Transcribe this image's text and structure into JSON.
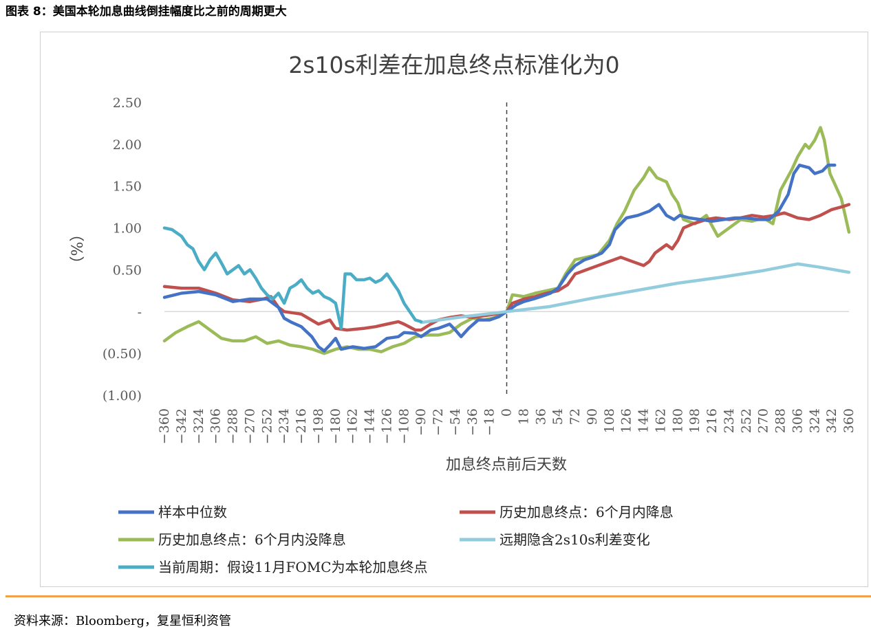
{
  "figure_caption": "图表 8：美国本轮加息曲线倒挂幅度比之前的周期更大",
  "source": "资料来源：Bloomberg，复星恒利资管",
  "chart_data": {
    "type": "line",
    "title": "2s10s利差在加息终点标准化为0",
    "xlabel": "加息终点前后天数",
    "ylabel": "（%）",
    "xlim": [
      -360,
      360
    ],
    "ylim": [
      -1.0,
      2.5
    ],
    "x_ticks": [
      -360,
      -342,
      -324,
      -306,
      -288,
      -270,
      -252,
      -234,
      -216,
      -198,
      -180,
      -162,
      -144,
      -126,
      -108,
      -90,
      -72,
      -54,
      -36,
      -18,
      0,
      18,
      36,
      54,
      72,
      90,
      108,
      126,
      144,
      162,
      180,
      198,
      216,
      234,
      252,
      270,
      288,
      306,
      324,
      342,
      360
    ],
    "y_ticks": [
      {
        "value": 2.5,
        "label": "2.50"
      },
      {
        "value": 2.0,
        "label": "2.00"
      },
      {
        "value": 1.5,
        "label": "1.50"
      },
      {
        "value": 1.0,
        "label": "1.00"
      },
      {
        "value": 0.5,
        "label": "0.50"
      },
      {
        "value": 0.0,
        "label": "-"
      },
      {
        "value": -0.5,
        "label": "(0.50)"
      },
      {
        "value": -1.0,
        "label": "(1.00)"
      }
    ],
    "reference_line_x": 0,
    "series": [
      {
        "name": "样本中位数",
        "color": "#4472c4",
        "points": [
          [
            -360,
            0.17
          ],
          [
            -342,
            0.22
          ],
          [
            -324,
            0.24
          ],
          [
            -306,
            0.2
          ],
          [
            -288,
            0.12
          ],
          [
            -270,
            0.15
          ],
          [
            -252,
            0.15
          ],
          [
            -240,
            0.05
          ],
          [
            -234,
            -0.08
          ],
          [
            -226,
            -0.13
          ],
          [
            -216,
            -0.18
          ],
          [
            -205,
            -0.3
          ],
          [
            -198,
            -0.42
          ],
          [
            -192,
            -0.47
          ],
          [
            -186,
            -0.4
          ],
          [
            -180,
            -0.32
          ],
          [
            -174,
            -0.45
          ],
          [
            -162,
            -0.42
          ],
          [
            -150,
            -0.44
          ],
          [
            -138,
            -0.42
          ],
          [
            -126,
            -0.32
          ],
          [
            -114,
            -0.3
          ],
          [
            -108,
            -0.25
          ],
          [
            -96,
            -0.26
          ],
          [
            -90,
            -0.3
          ],
          [
            -80,
            -0.22
          ],
          [
            -72,
            -0.2
          ],
          [
            -60,
            -0.15
          ],
          [
            -54,
            -0.22
          ],
          [
            -48,
            -0.3
          ],
          [
            -40,
            -0.2
          ],
          [
            -30,
            -0.1
          ],
          [
            -18,
            -0.1
          ],
          [
            -8,
            -0.06
          ],
          [
            0,
            0.0
          ],
          [
            10,
            0.08
          ],
          [
            18,
            0.12
          ],
          [
            28,
            0.15
          ],
          [
            36,
            0.18
          ],
          [
            46,
            0.22
          ],
          [
            54,
            0.28
          ],
          [
            64,
            0.45
          ],
          [
            72,
            0.55
          ],
          [
            82,
            0.62
          ],
          [
            90,
            0.65
          ],
          [
            100,
            0.7
          ],
          [
            108,
            0.8
          ],
          [
            114,
            0.98
          ],
          [
            120,
            1.05
          ],
          [
            126,
            1.12
          ],
          [
            138,
            1.15
          ],
          [
            150,
            1.2
          ],
          [
            160,
            1.28
          ],
          [
            168,
            1.15
          ],
          [
            176,
            1.1
          ],
          [
            182,
            1.15
          ],
          [
            192,
            1.12
          ],
          [
            204,
            1.1
          ],
          [
            216,
            1.08
          ],
          [
            228,
            1.1
          ],
          [
            240,
            1.12
          ],
          [
            252,
            1.12
          ],
          [
            264,
            1.1
          ],
          [
            276,
            1.1
          ],
          [
            286,
            1.2
          ],
          [
            296,
            1.4
          ],
          [
            302,
            1.65
          ],
          [
            308,
            1.75
          ],
          [
            318,
            1.72
          ],
          [
            324,
            1.65
          ],
          [
            332,
            1.68
          ],
          [
            338,
            1.75
          ],
          [
            345,
            1.75
          ]
        ]
      },
      {
        "name": "历史加息终点：6个月内降息",
        "color": "#c0504d",
        "points": [
          [
            -360,
            0.3
          ],
          [
            -342,
            0.28
          ],
          [
            -324,
            0.28
          ],
          [
            -306,
            0.22
          ],
          [
            -288,
            0.14
          ],
          [
            -270,
            0.12
          ],
          [
            -256,
            0.15
          ],
          [
            -248,
            0.18
          ],
          [
            -240,
            0.05
          ],
          [
            -234,
            0.0
          ],
          [
            -222,
            -0.02
          ],
          [
            -216,
            -0.03
          ],
          [
            -198,
            -0.15
          ],
          [
            -186,
            -0.1
          ],
          [
            -180,
            -0.2
          ],
          [
            -168,
            -0.22
          ],
          [
            -150,
            -0.2
          ],
          [
            -138,
            -0.18
          ],
          [
            -126,
            -0.15
          ],
          [
            -114,
            -0.12
          ],
          [
            -108,
            -0.15
          ],
          [
            -96,
            -0.22
          ],
          [
            -90,
            -0.22
          ],
          [
            -80,
            -0.15
          ],
          [
            -72,
            -0.1
          ],
          [
            -60,
            -0.07
          ],
          [
            -48,
            -0.05
          ],
          [
            -36,
            -0.07
          ],
          [
            -24,
            -0.05
          ],
          [
            -12,
            -0.03
          ],
          [
            0,
            0.0
          ],
          [
            6,
            0.1
          ],
          [
            18,
            0.15
          ],
          [
            30,
            0.18
          ],
          [
            42,
            0.22
          ],
          [
            54,
            0.25
          ],
          [
            64,
            0.32
          ],
          [
            72,
            0.45
          ],
          [
            84,
            0.5
          ],
          [
            96,
            0.55
          ],
          [
            108,
            0.6
          ],
          [
            120,
            0.65
          ],
          [
            132,
            0.6
          ],
          [
            144,
            0.55
          ],
          [
            150,
            0.6
          ],
          [
            156,
            0.7
          ],
          [
            162,
            0.75
          ],
          [
            168,
            0.8
          ],
          [
            174,
            0.75
          ],
          [
            180,
            0.85
          ],
          [
            186,
            1.0
          ],
          [
            196,
            1.05
          ],
          [
            210,
            1.1
          ],
          [
            220,
            1.12
          ],
          [
            234,
            1.1
          ],
          [
            246,
            1.12
          ],
          [
            258,
            1.15
          ],
          [
            270,
            1.13
          ],
          [
            282,
            1.15
          ],
          [
            292,
            1.18
          ],
          [
            306,
            1.12
          ],
          [
            318,
            1.1
          ],
          [
            330,
            1.15
          ],
          [
            342,
            1.22
          ],
          [
            352,
            1.25
          ],
          [
            360,
            1.28
          ]
        ]
      },
      {
        "name": "历史加息终点：6个月内没降息",
        "color": "#9bbb59",
        "points": [
          [
            -360,
            -0.35
          ],
          [
            -348,
            -0.25
          ],
          [
            -336,
            -0.18
          ],
          [
            -324,
            -0.12
          ],
          [
            -312,
            -0.22
          ],
          [
            -300,
            -0.32
          ],
          [
            -288,
            -0.35
          ],
          [
            -276,
            -0.35
          ],
          [
            -264,
            -0.3
          ],
          [
            -252,
            -0.38
          ],
          [
            -240,
            -0.35
          ],
          [
            -228,
            -0.4
          ],
          [
            -216,
            -0.42
          ],
          [
            -204,
            -0.45
          ],
          [
            -192,
            -0.5
          ],
          [
            -180,
            -0.45
          ],
          [
            -168,
            -0.42
          ],
          [
            -156,
            -0.45
          ],
          [
            -144,
            -0.45
          ],
          [
            -132,
            -0.48
          ],
          [
            -120,
            -0.42
          ],
          [
            -108,
            -0.38
          ],
          [
            -96,
            -0.3
          ],
          [
            -84,
            -0.28
          ],
          [
            -72,
            -0.28
          ],
          [
            -60,
            -0.25
          ],
          [
            -48,
            -0.15
          ],
          [
            -36,
            -0.08
          ],
          [
            -24,
            -0.1
          ],
          [
            -12,
            -0.07
          ],
          [
            0,
            0.0
          ],
          [
            6,
            0.2
          ],
          [
            18,
            0.18
          ],
          [
            30,
            0.22
          ],
          [
            42,
            0.25
          ],
          [
            54,
            0.28
          ],
          [
            62,
            0.45
          ],
          [
            72,
            0.62
          ],
          [
            84,
            0.65
          ],
          [
            96,
            0.68
          ],
          [
            108,
            0.85
          ],
          [
            116,
            1.05
          ],
          [
            124,
            1.2
          ],
          [
            134,
            1.45
          ],
          [
            144,
            1.6
          ],
          [
            150,
            1.72
          ],
          [
            158,
            1.6
          ],
          [
            168,
            1.55
          ],
          [
            174,
            1.4
          ],
          [
            180,
            1.3
          ],
          [
            186,
            1.1
          ],
          [
            198,
            1.05
          ],
          [
            210,
            1.15
          ],
          [
            222,
            0.9
          ],
          [
            234,
            1.0
          ],
          [
            246,
            1.1
          ],
          [
            258,
            1.08
          ],
          [
            270,
            1.12
          ],
          [
            280,
            1.05
          ],
          [
            288,
            1.45
          ],
          [
            300,
            1.7
          ],
          [
            306,
            1.85
          ],
          [
            314,
            2.0
          ],
          [
            318,
            1.95
          ],
          [
            324,
            2.05
          ],
          [
            330,
            2.2
          ],
          [
            334,
            2.05
          ],
          [
            340,
            1.65
          ],
          [
            346,
            1.5
          ],
          [
            352,
            1.35
          ],
          [
            360,
            0.95
          ]
        ]
      },
      {
        "name": "远期隐含2s10s利差变化",
        "color": "#93cddd",
        "points": [
          [
            -90,
            -0.13
          ],
          [
            -45,
            -0.06
          ],
          [
            0,
            0.0
          ],
          [
            45,
            0.06
          ],
          [
            90,
            0.16
          ],
          [
            135,
            0.25
          ],
          [
            180,
            0.34
          ],
          [
            225,
            0.41
          ],
          [
            270,
            0.49
          ],
          [
            306,
            0.57
          ],
          [
            330,
            0.53
          ],
          [
            360,
            0.47
          ]
        ]
      },
      {
        "name": "当前周期：假设11月FOMC为本轮加息终点",
        "color": "#4bacc6",
        "points": [
          [
            -360,
            1.0
          ],
          [
            -352,
            0.98
          ],
          [
            -342,
            0.9
          ],
          [
            -336,
            0.8
          ],
          [
            -330,
            0.75
          ],
          [
            -324,
            0.6
          ],
          [
            -318,
            0.5
          ],
          [
            -312,
            0.62
          ],
          [
            -306,
            0.7
          ],
          [
            -300,
            0.58
          ],
          [
            -294,
            0.45
          ],
          [
            -288,
            0.5
          ],
          [
            -282,
            0.55
          ],
          [
            -276,
            0.45
          ],
          [
            -270,
            0.5
          ],
          [
            -264,
            0.4
          ],
          [
            -258,
            0.28
          ],
          [
            -252,
            0.2
          ],
          [
            -246,
            0.15
          ],
          [
            -240,
            0.22
          ],
          [
            -234,
            0.1
          ],
          [
            -228,
            0.28
          ],
          [
            -222,
            0.32
          ],
          [
            -216,
            0.38
          ],
          [
            -210,
            0.28
          ],
          [
            -204,
            0.22
          ],
          [
            -198,
            0.25
          ],
          [
            -192,
            0.18
          ],
          [
            -186,
            0.15
          ],
          [
            -180,
            0.1
          ],
          [
            -174,
            -0.2
          ],
          [
            -170,
            0.45
          ],
          [
            -164,
            0.45
          ],
          [
            -158,
            0.38
          ],
          [
            -150,
            0.38
          ],
          [
            -144,
            0.4
          ],
          [
            -138,
            0.35
          ],
          [
            -132,
            0.38
          ],
          [
            -126,
            0.45
          ],
          [
            -120,
            0.35
          ],
          [
            -114,
            0.25
          ],
          [
            -108,
            0.1
          ],
          [
            -102,
            0.0
          ],
          [
            -96,
            -0.1
          ],
          [
            -90,
            -0.12
          ]
        ]
      }
    ]
  },
  "legend": [
    {
      "name": "样本中位数",
      "color": "#4472c4"
    },
    {
      "name": "历史加息终点：6个月内降息",
      "color": "#c0504d"
    },
    {
      "name": "历史加息终点：6个月内没降息",
      "color": "#9bbb59"
    },
    {
      "name": "远期隐含2s10s利差变化",
      "color": "#93cddd"
    },
    {
      "name": "当前周期：假设11月FOMC为本轮加息终点",
      "color": "#4bacc6"
    }
  ]
}
